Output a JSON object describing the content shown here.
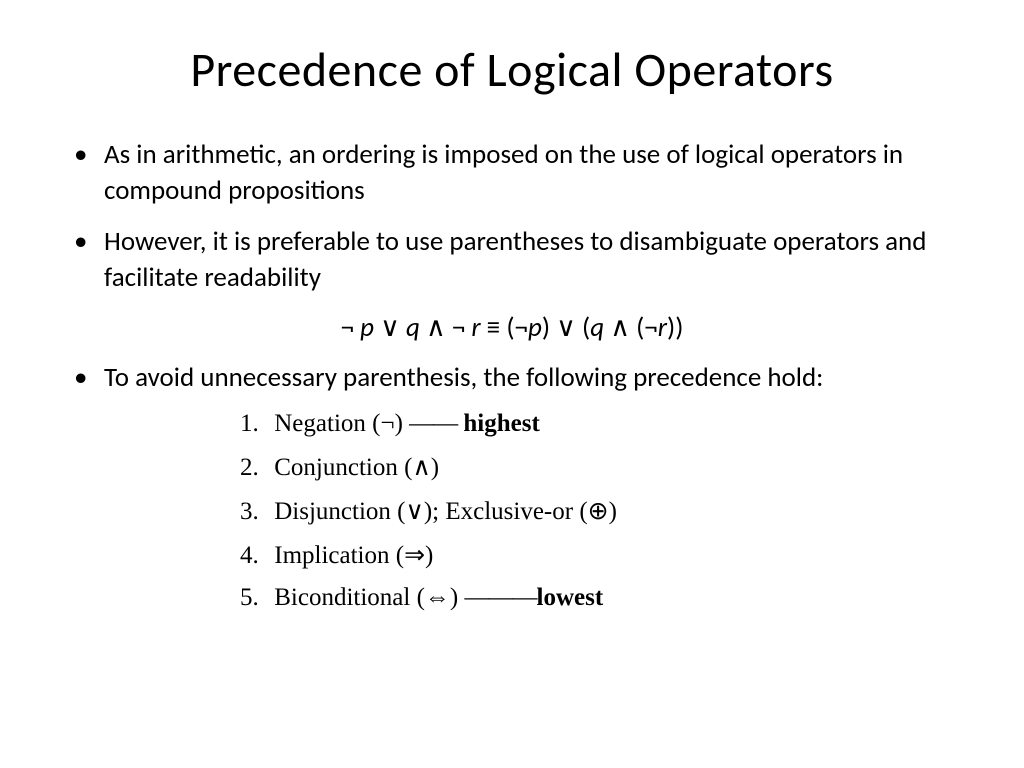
{
  "title": "Precedence of Logical Operators",
  "bullets": {
    "b1": "As in arithmetic, an ordering is imposed on the use of logical operators in compound propositions",
    "b2": "However, it is preferable to use parentheses to disambiguate operators and facilitate readability",
    "b3": "To avoid unnecessary parenthesis, the following precedence hold:"
  },
  "formula": {
    "lhs_neg": "¬",
    "lhs_p": " p ",
    "lhs_or": "∨",
    "lhs_q": " q ",
    "lhs_and": "∧",
    "lhs_neg2": " ¬",
    "lhs_r": " r",
    "equiv": "   ≡   ",
    "rhs": "(¬p) ∨ (q ∧ (¬r))"
  },
  "precedence": {
    "p1_num": "1.",
    "p1_name": "Negation (",
    "p1_sym": "¬",
    "p1_close": ") ",
    "p1_dash": "——",
    "p1_tag": " highest",
    "p2_num": "2.",
    "p2_name": "Conjunction (",
    "p2_sym": "∧",
    "p2_close": ")",
    "p3_num": "3.",
    "p3_name": "Disjunction (",
    "p3_sym": "∨",
    "p3_close": ");",
    "p3_sep": "   ",
    "p3_name2": "Exclusive-or (",
    "p3_sym2": "⊕",
    "p3_close2": ")",
    "p4_num": "4.",
    "p4_name": "Implication (",
    "p4_sym": "⇒",
    "p4_close": ")",
    "p5_num": "5.",
    "p5_name": "Biconditional (",
    "p5_sym": "⇔",
    "p5_close": ") ",
    "p5_dash": "———",
    "p5_tag": "lowest"
  },
  "style": {
    "background": "#ffffff",
    "text_color": "#000000",
    "title_fontsize": 48,
    "body_fontsize": 27,
    "prec_fontsize": 25,
    "body_font": "Calibri",
    "prec_font": "Times New Roman"
  }
}
